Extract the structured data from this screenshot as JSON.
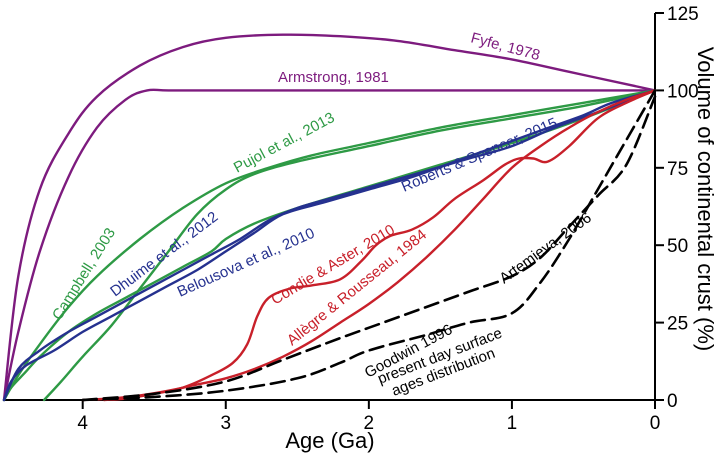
{
  "chart_data": {
    "type": "line",
    "title": "",
    "xlabel": "Age (Ga)",
    "ylabel": "Volume of continental crust (%)",
    "xlim": [
      4.55,
      0
    ],
    "ylim": [
      0,
      125
    ],
    "xticks": [
      4,
      3,
      2,
      1,
      0
    ],
    "yticks": [
      0,
      25,
      50,
      75,
      100,
      125
    ],
    "grid": false,
    "colors": {
      "purple": "#7d1b7e",
      "green": "#2e9a45",
      "blue": "#25318f",
      "red": "#c8202a",
      "black": "#000000"
    },
    "series": [
      {
        "name": "Fyfe, 1978",
        "color": "#7d1b7e",
        "dash": false,
        "x": [
          4.55,
          4.45,
          4.3,
          4.1,
          3.9,
          3.6,
          3.3,
          3.0,
          2.6,
          2.2,
          1.8,
          1.4,
          1.0,
          0.6,
          0.2,
          0
        ],
        "y": [
          0,
          40,
          68,
          86,
          98,
          108,
          114,
          117,
          118,
          117.5,
          116,
          113,
          110,
          106,
          102,
          100
        ]
      },
      {
        "name": "Armstrong, 1981",
        "color": "#7d1b7e",
        "dash": false,
        "x": [
          4.55,
          4.45,
          4.3,
          4.1,
          3.9,
          3.7,
          3.55,
          3.4,
          3.0,
          2.0,
          1.0,
          0
        ],
        "y": [
          0,
          22,
          48,
          72,
          88,
          97,
          100,
          100,
          100,
          100,
          100,
          100
        ]
      },
      {
        "name": "Pujol et al., 2013",
        "color": "#2e9a45",
        "dash": false,
        "x": [
          4.55,
          4.45,
          4.3,
          4.1,
          3.9,
          3.6,
          3.3,
          3.0,
          2.7,
          2.4,
          2.0,
          1.5,
          1.0,
          0.5,
          0
        ],
        "y": [
          0,
          8,
          18,
          30,
          40,
          52,
          62,
          70,
          75,
          79,
          83,
          88,
          92,
          96,
          100
        ]
      },
      {
        "name": "Campbell, 2003",
        "color": "#2e9a45",
        "dash": false,
        "x": [
          4.27,
          4.15,
          4.0,
          3.8,
          3.6,
          3.4,
          3.2,
          3.0,
          2.8,
          2.5,
          2.0,
          1.5,
          1.0,
          0.5,
          0
        ],
        "y": [
          0,
          6,
          14,
          24,
          36,
          48,
          60,
          68,
          73,
          77,
          82,
          87,
          91,
          95,
          100
        ]
      },
      {
        "name": "Dhuime et al., 2012",
        "color": "#2e9a45",
        "dash": false,
        "x": [
          4.55,
          4.5,
          4.4,
          4.3,
          4.1,
          3.9,
          3.7,
          3.5,
          3.3,
          3.1,
          3.0,
          2.8,
          2.5,
          2.0,
          1.5,
          1.0,
          0.5,
          0
        ],
        "y": [
          0,
          4,
          9,
          14,
          22,
          28,
          33,
          38,
          43,
          48,
          52,
          57,
          62,
          69,
          76,
          83,
          91,
          100
        ]
      },
      {
        "name": "Belousova et al., 2010",
        "color": "#25318f",
        "dash": false,
        "x": [
          4.55,
          4.45,
          4.3,
          4.1,
          3.9,
          3.7,
          3.5,
          3.3,
          3.1,
          2.9,
          2.7,
          2.5,
          2.2,
          1.9,
          1.6,
          1.3,
          1.0,
          0.7,
          0.4,
          0
        ],
        "y": [
          0,
          10,
          16,
          22,
          27,
          32,
          37,
          42,
          47,
          52,
          58,
          62,
          66,
          70,
          74,
          78,
          82,
          88,
          93,
          100
        ]
      },
      {
        "name": "Roberts & Spencer, 2015",
        "color": "#25318f",
        "dash": false,
        "x": [
          4.55,
          4.5,
          4.4,
          4.2,
          4.0,
          3.8,
          3.6,
          3.4,
          3.2,
          3.0,
          2.8,
          2.6,
          2.3,
          2.0,
          1.7,
          1.4,
          1.1,
          0.8,
          0.5,
          0.3,
          0
        ],
        "y": [
          0,
          6,
          11,
          16,
          22,
          27,
          32,
          37,
          42,
          48,
          54,
          60,
          64,
          68,
          72,
          77,
          82,
          87,
          92,
          96,
          100
        ]
      },
      {
        "name": "Condie & Aster, 2010",
        "color": "#c8202a",
        "dash": false,
        "x": [
          3.85,
          3.7,
          3.5,
          3.3,
          3.1,
          2.95,
          2.85,
          2.78,
          2.7,
          2.55,
          2.4,
          2.2,
          2.05,
          1.95,
          1.85,
          1.7,
          1.55,
          1.4,
          1.2,
          1.05,
          0.95,
          0.85,
          0.75,
          0.6,
          0.4,
          0.2,
          0
        ],
        "y": [
          0,
          0.5,
          2,
          4,
          8,
          12,
          18,
          27,
          33,
          36,
          37,
          39,
          45,
          50,
          53,
          55,
          59,
          65,
          71,
          76,
          78,
          78,
          77,
          82,
          91,
          96,
          100
        ]
      },
      {
        "name": "Allègre & Rousseau, 1984",
        "color": "#c8202a",
        "dash": false,
        "x": [
          4.0,
          3.8,
          3.6,
          3.4,
          3.2,
          3.0,
          2.8,
          2.6,
          2.4,
          2.2,
          2.0,
          1.8,
          1.6,
          1.4,
          1.2,
          1.0,
          0.8,
          0.6,
          0.4,
          0.2,
          0
        ],
        "y": [
          0,
          0.5,
          1.5,
          3,
          5,
          7,
          10,
          14,
          19,
          25,
          31,
          38,
          46,
          55,
          65,
          75,
          82,
          88,
          93,
          97,
          100
        ]
      },
      {
        "name": "Artemieva, 2006",
        "color": "#000000",
        "dash": true,
        "x": [
          4.0,
          3.5,
          3.0,
          2.6,
          2.2,
          1.9,
          1.6,
          1.3,
          1.0,
          0.8,
          0.6,
          0.4,
          0.2,
          0
        ],
        "y": [
          0,
          2,
          6,
          13,
          20,
          25,
          30,
          35,
          40,
          46,
          56,
          66,
          76,
          98
        ]
      },
      {
        "name": "Goodwin 1996",
        "color": "#000000",
        "dash": true,
        "x": [
          4.0,
          3.5,
          3.0,
          2.5,
          2.2,
          2.0,
          1.6,
          1.3,
          1.0,
          0.8,
          0.6,
          0.4,
          0.2,
          0
        ],
        "y": [
          0,
          1,
          3,
          7,
          12,
          16,
          21,
          25,
          28,
          38,
          52,
          68,
          84,
          100
        ]
      }
    ],
    "labels": [
      {
        "text": "Fyfe, 1978",
        "color": "#7d1b7e"
      },
      {
        "text": "Armstrong, 1981",
        "color": "#7d1b7e"
      },
      {
        "text": "Pujol et al., 2013",
        "color": "#2e9a45"
      },
      {
        "text": "Campbell, 2003",
        "color": "#2e9a45"
      },
      {
        "text": "Dhuime et al., 2012",
        "color": "#25318f"
      },
      {
        "text": "Belousova et al., 2010",
        "color": "#25318f"
      },
      {
        "text": "Roberts & Spencer, 2015",
        "color": "#25318f"
      },
      {
        "text": "Condie & Aster, 2010",
        "color": "#c8202a"
      },
      {
        "text": "Allègre & Rousseau, 1984",
        "color": "#c8202a"
      },
      {
        "text": "Artemieva, 2006",
        "color": "#000000"
      },
      {
        "text": "Goodwin 1996",
        "color": "#000000"
      },
      {
        "text": "present day surface",
        "color": "#000000"
      },
      {
        "text": "ages distribution",
        "color": "#000000"
      }
    ]
  }
}
